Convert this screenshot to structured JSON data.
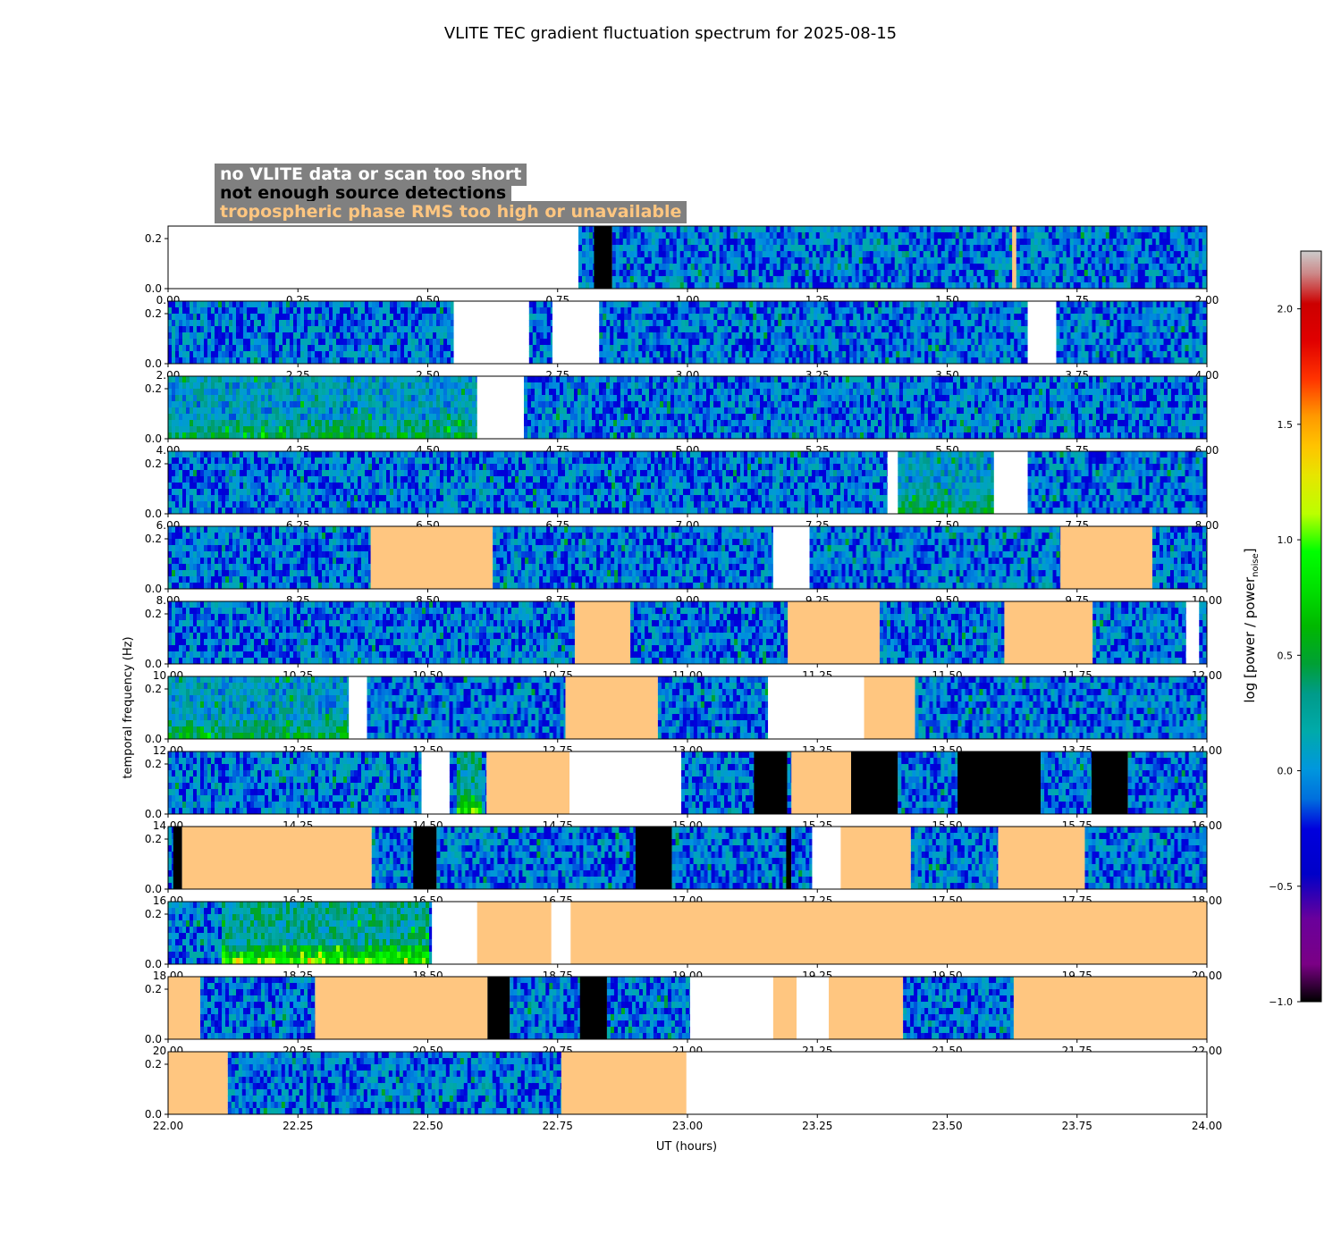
{
  "chart_data": {
    "type": "heatmap",
    "title": "VLITE TEC gradient fluctuation spectrum for 2025-08-15",
    "xlabel": "UT (hours)",
    "ylabel": "temporal frequency (Hz)",
    "colorbar_label": "log [power / power",
    "colorbar_label_sub": "noise",
    "colorbar_label_tail": "]",
    "colorbar_range": [
      -1.0,
      2.25
    ],
    "colorbar_ticks": [
      "-1.0",
      "-0.5",
      "0.0",
      "0.5",
      "1.0",
      "1.5",
      "2.0"
    ],
    "colormap": "nipy_spectral",
    "y_range": [
      0.0,
      0.25
    ],
    "y_ticks": [
      "0.0",
      "0.2"
    ],
    "legend": [
      {
        "label": "no VLITE data or scan too short",
        "color": "#ffffff"
      },
      {
        "label": "not enough source detections",
        "color": "#000000"
      },
      {
        "label": "tropospheric phase RMS too high or unavailable",
        "color": "#ffc680"
      }
    ],
    "panels": [
      {
        "x_range": [
          0,
          2
        ],
        "x_ticks": [
          "0.00",
          "0.25",
          "0.50",
          "0.75",
          "1.00",
          "1.25",
          "1.50",
          "1.75",
          "2.00"
        ],
        "segments": [
          [
            0,
            0.79,
            "none"
          ],
          [
            0.79,
            0.82,
            "data"
          ],
          [
            0.82,
            0.855,
            "nodet"
          ],
          [
            0.855,
            1.625,
            "data"
          ],
          [
            1.625,
            1.633,
            "tropo"
          ],
          [
            1.633,
            2,
            "data"
          ]
        ]
      },
      {
        "x_range": [
          2,
          4
        ],
        "x_ticks": [
          "2.00",
          "2.25",
          "2.50",
          "2.75",
          "3.00",
          "3.25",
          "3.50",
          "3.75",
          "4.00"
        ],
        "segments": [
          [
            2,
            2.55,
            "data"
          ],
          [
            2.55,
            2.695,
            "none"
          ],
          [
            2.695,
            2.74,
            "data"
          ],
          [
            2.74,
            2.83,
            "none"
          ],
          [
            2.83,
            3.655,
            "data"
          ],
          [
            3.655,
            3.71,
            "none"
          ],
          [
            3.71,
            4,
            "data"
          ]
        ]
      },
      {
        "x_range": [
          4,
          6
        ],
        "x_ticks": [
          "4.00",
          "4.25",
          "4.50",
          "4.75",
          "5.00",
          "5.25",
          "5.50",
          "5.75",
          "6.00"
        ],
        "segments": [
          [
            4,
            4.595,
            "data"
          ],
          [
            4.595,
            4.685,
            "none"
          ],
          [
            4.685,
            6,
            "data"
          ]
        ]
      },
      {
        "x_range": [
          6,
          8
        ],
        "x_ticks": [
          "6.00",
          "6.25",
          "6.50",
          "6.75",
          "7.00",
          "7.25",
          "7.50",
          "7.75",
          "8.00"
        ],
        "segments": [
          [
            6,
            7.385,
            "data"
          ],
          [
            7.385,
            7.405,
            "none"
          ],
          [
            7.405,
            7.59,
            "data"
          ],
          [
            7.59,
            7.655,
            "none"
          ],
          [
            7.655,
            8,
            "data"
          ]
        ]
      },
      {
        "x_range": [
          8,
          10
        ],
        "x_ticks": [
          "8.00",
          "8.25",
          "8.50",
          "8.75",
          "9.00",
          "9.25",
          "9.50",
          "9.75",
          "10.00"
        ],
        "segments": [
          [
            8,
            8.39,
            "data"
          ],
          [
            8.39,
            8.625,
            "tropo"
          ],
          [
            8.625,
            9.165,
            "data"
          ],
          [
            9.165,
            9.235,
            "none"
          ],
          [
            9.235,
            9.718,
            "data"
          ],
          [
            9.718,
            9.895,
            "tropo"
          ],
          [
            9.895,
            10,
            "data"
          ]
        ]
      },
      {
        "x_range": [
          10,
          12
        ],
        "x_ticks": [
          "10.00",
          "10.25",
          "10.50",
          "10.75",
          "11.00",
          "11.25",
          "11.50",
          "11.75",
          "12.00"
        ],
        "segments": [
          [
            10,
            10.783,
            "data"
          ],
          [
            10.783,
            10.89,
            "tropo"
          ],
          [
            10.89,
            11.193,
            "data"
          ],
          [
            11.193,
            11.37,
            "tropo"
          ],
          [
            11.37,
            11.61,
            "data"
          ],
          [
            11.61,
            11.78,
            "tropo"
          ],
          [
            11.78,
            11.96,
            "data"
          ],
          [
            11.96,
            11.985,
            "none"
          ],
          [
            11.985,
            12,
            "data"
          ]
        ]
      },
      {
        "x_range": [
          12,
          14
        ],
        "x_ticks": [
          "12.00",
          "12.25",
          "12.50",
          "12.75",
          "13.00",
          "13.25",
          "13.50",
          "13.75",
          "14.00"
        ],
        "segments": [
          [
            12,
            12.348,
            "data"
          ],
          [
            12.348,
            12.383,
            "none"
          ],
          [
            12.383,
            12.765,
            "data"
          ],
          [
            12.765,
            12.943,
            "tropo"
          ],
          [
            12.943,
            13.155,
            "data"
          ],
          [
            13.155,
            13.34,
            "none"
          ],
          [
            13.34,
            13.438,
            "tropo"
          ],
          [
            13.438,
            14,
            "data"
          ]
        ]
      },
      {
        "x_range": [
          14,
          16
        ],
        "x_ticks": [
          "14.00",
          "14.25",
          "14.50",
          "14.75",
          "15.00",
          "15.25",
          "15.50",
          "15.75",
          "16.00"
        ],
        "segments": [
          [
            14,
            14.488,
            "data"
          ],
          [
            14.488,
            14.542,
            "none"
          ],
          [
            14.542,
            14.613,
            "data"
          ],
          [
            14.613,
            14.773,
            "tropo"
          ],
          [
            14.773,
            14.988,
            "none"
          ],
          [
            14.988,
            15.128,
            "data"
          ],
          [
            15.128,
            15.192,
            "nodet"
          ],
          [
            15.192,
            15.2,
            "data"
          ],
          [
            15.2,
            15.315,
            "tropo"
          ],
          [
            15.315,
            15.405,
            "nodet"
          ],
          [
            15.405,
            15.52,
            "data"
          ],
          [
            15.52,
            15.68,
            "nodet"
          ],
          [
            15.68,
            15.778,
            "data"
          ],
          [
            15.778,
            15.848,
            "nodet"
          ],
          [
            15.848,
            16,
            "data"
          ]
        ]
      },
      {
        "x_range": [
          16,
          18
        ],
        "x_ticks": [
          "16.00",
          "16.25",
          "16.50",
          "16.75",
          "17.00",
          "17.25",
          "17.50",
          "17.75",
          "18.00"
        ],
        "segments": [
          [
            16,
            16.01,
            "data"
          ],
          [
            16.01,
            16.027,
            "nodet"
          ],
          [
            16.027,
            16.392,
            "tropo"
          ],
          [
            16.392,
            16.472,
            "data"
          ],
          [
            16.472,
            16.517,
            "nodet"
          ],
          [
            16.517,
            16.9,
            "data"
          ],
          [
            16.9,
            16.97,
            "nodet"
          ],
          [
            16.97,
            17.19,
            "data"
          ],
          [
            17.19,
            17.2,
            "nodet"
          ],
          [
            17.2,
            17.24,
            "data"
          ],
          [
            17.24,
            17.295,
            "none"
          ],
          [
            17.295,
            17.43,
            "tropo"
          ],
          [
            17.43,
            17.598,
            "data"
          ],
          [
            17.598,
            17.765,
            "tropo"
          ],
          [
            17.765,
            18,
            "data"
          ]
        ]
      },
      {
        "x_range": [
          18,
          20
        ],
        "x_ticks": [
          "18.00",
          "18.25",
          "18.50",
          "18.75",
          "19.00",
          "19.25",
          "19.50",
          "19.75",
          "20.00"
        ],
        "segments": [
          [
            18,
            18.508,
            "data"
          ],
          [
            18.508,
            18.595,
            "none"
          ],
          [
            18.595,
            18.738,
            "tropo"
          ],
          [
            18.738,
            18.775,
            "none"
          ],
          [
            18.775,
            20,
            "tropo"
          ]
        ]
      },
      {
        "x_range": [
          20,
          22
        ],
        "x_ticks": [
          "20.00",
          "20.25",
          "20.50",
          "20.75",
          "21.00",
          "21.25",
          "21.50",
          "21.75",
          "22.00"
        ],
        "segments": [
          [
            20,
            20.062,
            "tropo"
          ],
          [
            20.062,
            20.283,
            "data"
          ],
          [
            20.283,
            20.615,
            "tropo"
          ],
          [
            20.615,
            20.658,
            "nodet"
          ],
          [
            20.658,
            20.793,
            "data"
          ],
          [
            20.793,
            20.845,
            "nodet"
          ],
          [
            20.845,
            21.005,
            "data"
          ],
          [
            21.005,
            21.165,
            "none"
          ],
          [
            21.165,
            21.21,
            "tropo"
          ],
          [
            21.21,
            21.272,
            "none"
          ],
          [
            21.272,
            21.415,
            "tropo"
          ],
          [
            21.415,
            21.628,
            "data"
          ],
          [
            21.628,
            22,
            "tropo"
          ]
        ]
      },
      {
        "x_range": [
          22,
          24
        ],
        "x_ticks": [
          "22.00",
          "22.25",
          "22.50",
          "22.75",
          "23.00",
          "23.25",
          "23.50",
          "23.75",
          "24.00"
        ],
        "segments": [
          [
            22,
            22.115,
            "tropo"
          ],
          [
            22.115,
            22.757,
            "data"
          ],
          [
            22.757,
            22.998,
            "tropo"
          ],
          [
            22.998,
            24,
            "none"
          ]
        ]
      }
    ],
    "intensity_hotspots": [
      {
        "panel": 2,
        "x": [
          4.0,
          4.6
        ],
        "level": "raised"
      },
      {
        "panel": 3,
        "x": [
          7.4,
          7.6
        ],
        "level": "raised"
      },
      {
        "panel": 6,
        "x": [
          12.0,
          12.35
        ],
        "level": "raised"
      },
      {
        "panel": 7,
        "x": [
          14.55,
          14.6
        ],
        "level": "peak"
      },
      {
        "panel": 9,
        "x": [
          18.1,
          18.5
        ],
        "level": "peak"
      }
    ]
  }
}
